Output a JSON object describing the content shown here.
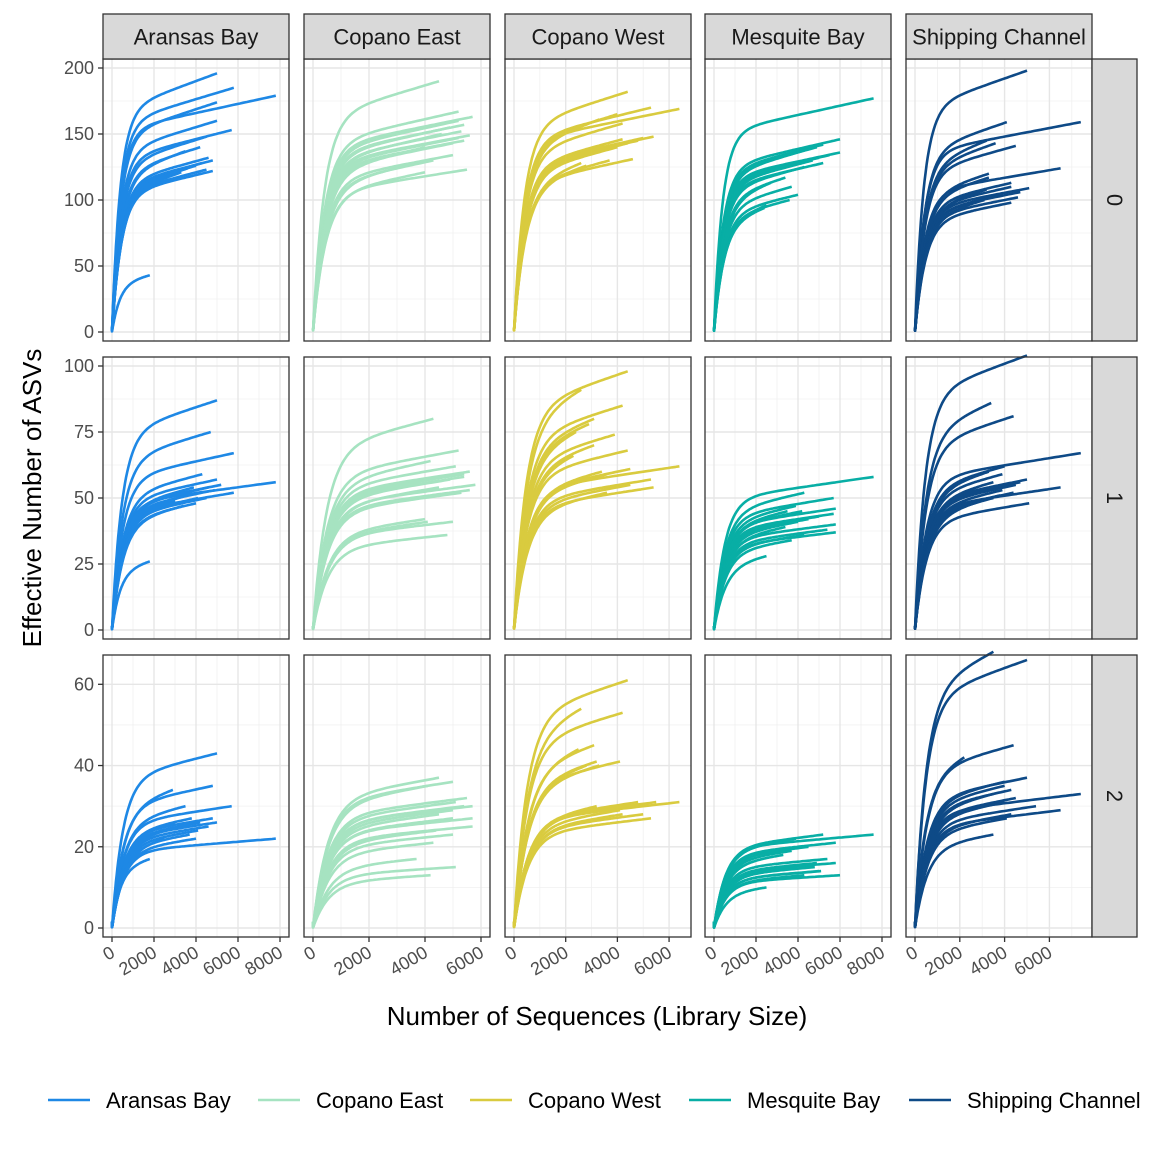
{
  "chart_data": {
    "type": "line",
    "xlabel": "Number of Sequences (Library Size)",
    "ylabel": "Effective Number of ASVs",
    "facet_columns": [
      "Aransas Bay",
      "Copano East",
      "Copano West",
      "Mesquite Bay",
      "Shipping Channel"
    ],
    "facet_rows": [
      "0",
      "1",
      "2"
    ],
    "x_axis": {
      "ranges": [
        [
          0,
          8000
        ],
        [
          0,
          6000
        ],
        [
          0,
          6500
        ],
        [
          0,
          8000
        ],
        [
          0,
          7500
        ]
      ],
      "ticks": [
        [
          "0",
          "2000",
          "4000",
          "6000",
          "8000"
        ],
        [
          "0",
          "2000",
          "4000",
          "6000"
        ],
        [
          "0",
          "2000",
          "4000",
          "6000"
        ],
        [
          "0",
          "2000",
          "4000",
          "6000",
          "8000"
        ],
        [
          "0",
          "2000",
          "4000",
          "6000"
        ]
      ]
    },
    "y_axis": {
      "ranges": [
        [
          0,
          200
        ],
        [
          0,
          100
        ],
        [
          0,
          65
        ]
      ],
      "ticks": [
        [
          "0",
          "50",
          "100",
          "150",
          "200"
        ],
        [
          "0",
          "25",
          "50",
          "75",
          "100"
        ],
        [
          "0",
          "20",
          "40",
          "60"
        ]
      ]
    },
    "colors": {
      "Aransas Bay": "#1e88e5",
      "Copano East": "#a6e3c1",
      "Copano West": "#d9cb3f",
      "Mesquite Bay": "#08aea5",
      "Shipping Channel": "#0e4a87"
    },
    "grid": true,
    "legend_position": "bottom",
    "legend": [
      "Aransas Bay",
      "Copano East",
      "Copano West",
      "Mesquite Bay",
      "Shipping Channel"
    ],
    "curves": [
      [
        [
          [
            5000,
            196
          ],
          [
            5800,
            185
          ],
          [
            7800,
            179
          ],
          [
            5000,
            174
          ],
          [
            5000,
            160
          ],
          [
            5700,
            153
          ],
          [
            4500,
            148
          ],
          [
            4200,
            140
          ],
          [
            3500,
            137
          ],
          [
            4600,
            132
          ],
          [
            4800,
            130
          ],
          [
            4300,
            128
          ],
          [
            4000,
            126
          ],
          [
            3600,
            124
          ],
          [
            4500,
            123
          ],
          [
            4800,
            122
          ],
          [
            3300,
            121
          ],
          [
            1800,
            43
          ]
        ],
        [
          [
            5000,
            87
          ],
          [
            4700,
            75
          ],
          [
            5800,
            67
          ],
          [
            4300,
            59
          ],
          [
            5000,
            57
          ],
          [
            7800,
            56
          ],
          [
            5200,
            55
          ],
          [
            4600,
            54
          ],
          [
            3900,
            54
          ],
          [
            4900,
            53
          ],
          [
            5800,
            52
          ],
          [
            3600,
            51
          ],
          [
            4100,
            50
          ],
          [
            4500,
            50
          ],
          [
            3000,
            49
          ],
          [
            4000,
            48
          ],
          [
            3400,
            47
          ],
          [
            1800,
            26
          ]
        ],
        [
          [
            5000,
            43
          ],
          [
            4800,
            35
          ],
          [
            2900,
            34
          ],
          [
            5700,
            30
          ],
          [
            3500,
            30
          ],
          [
            4800,
            27
          ],
          [
            3800,
            27
          ],
          [
            5000,
            26
          ],
          [
            4200,
            26
          ],
          [
            3000,
            26
          ],
          [
            4600,
            25
          ],
          [
            3300,
            25
          ],
          [
            4100,
            24
          ],
          [
            7800,
            22
          ],
          [
            3700,
            23
          ],
          [
            4000,
            22
          ],
          [
            2500,
            22
          ],
          [
            1800,
            17
          ]
        ]
      ],
      [
        [
          [
            4500,
            190
          ],
          [
            5200,
            167
          ],
          [
            5700,
            163
          ],
          [
            5200,
            160
          ],
          [
            5400,
            157
          ],
          [
            4900,
            155
          ],
          [
            5300,
            152
          ],
          [
            4600,
            150
          ],
          [
            5600,
            149
          ],
          [
            5200,
            147
          ],
          [
            5400,
            145
          ],
          [
            5000,
            143
          ],
          [
            4000,
            140
          ],
          [
            5000,
            134
          ],
          [
            4300,
            130
          ],
          [
            3700,
            128
          ],
          [
            5500,
            123
          ],
          [
            4000,
            121
          ]
        ],
        [
          [
            4300,
            80
          ],
          [
            5200,
            68
          ],
          [
            4200,
            64
          ],
          [
            5100,
            62
          ],
          [
            5600,
            60
          ],
          [
            5400,
            59
          ],
          [
            5400,
            58
          ],
          [
            4700,
            58
          ],
          [
            4900,
            57
          ],
          [
            5800,
            55
          ],
          [
            4500,
            54
          ],
          [
            5600,
            53
          ],
          [
            5300,
            52
          ],
          [
            4000,
            42
          ],
          [
            4100,
            41
          ],
          [
            5000,
            41
          ],
          [
            3500,
            40
          ],
          [
            4800,
            36
          ]
        ],
        [
          [
            4500,
            37
          ],
          [
            5000,
            36
          ],
          [
            4100,
            35
          ],
          [
            5500,
            32
          ],
          [
            5100,
            31
          ],
          [
            5400,
            30
          ],
          [
            5700,
            30
          ],
          [
            5000,
            29
          ],
          [
            4500,
            28
          ],
          [
            5700,
            27
          ],
          [
            5000,
            27
          ],
          [
            5700,
            25
          ],
          [
            4400,
            24
          ],
          [
            5000,
            23
          ],
          [
            4300,
            21
          ],
          [
            3700,
            17
          ],
          [
            5100,
            15
          ],
          [
            4200,
            13
          ]
        ]
      ],
      [
        [
          [
            4400,
            182
          ],
          [
            5300,
            170
          ],
          [
            6400,
            169
          ],
          [
            4000,
            165
          ],
          [
            3300,
            161
          ],
          [
            4200,
            158
          ],
          [
            5400,
            148
          ],
          [
            5000,
            147
          ],
          [
            4200,
            146
          ],
          [
            4800,
            145
          ],
          [
            4400,
            143
          ],
          [
            3500,
            141
          ],
          [
            4000,
            140
          ],
          [
            3100,
            138
          ],
          [
            4600,
            131
          ],
          [
            3700,
            130
          ],
          [
            2600,
            128
          ],
          [
            2800,
            126
          ]
        ],
        [
          [
            4400,
            98
          ],
          [
            2600,
            91
          ],
          [
            4200,
            85
          ],
          [
            3100,
            80
          ],
          [
            2900,
            78
          ],
          [
            2400,
            75
          ],
          [
            3900,
            74
          ],
          [
            3100,
            70
          ],
          [
            4400,
            68
          ],
          [
            2300,
            66
          ],
          [
            6400,
            62
          ],
          [
            4500,
            61
          ],
          [
            3400,
            60
          ],
          [
            3600,
            59
          ],
          [
            5300,
            57
          ],
          [
            4500,
            55
          ],
          [
            5400,
            54
          ],
          [
            3600,
            52
          ]
        ],
        [
          [
            4400,
            61
          ],
          [
            2600,
            54
          ],
          [
            4200,
            53
          ],
          [
            3100,
            45
          ],
          [
            2500,
            44
          ],
          [
            3200,
            41
          ],
          [
            4100,
            41
          ],
          [
            2800,
            40
          ],
          [
            3300,
            40
          ],
          [
            6400,
            31
          ],
          [
            4800,
            31
          ],
          [
            5500,
            31
          ],
          [
            3800,
            30
          ],
          [
            3200,
            30
          ],
          [
            4100,
            29
          ],
          [
            5000,
            28
          ],
          [
            4200,
            28
          ],
          [
            5300,
            27
          ]
        ]
      ],
      [
        [
          [
            7600,
            177
          ],
          [
            6000,
            146
          ],
          [
            5200,
            142
          ],
          [
            4900,
            140
          ],
          [
            4400,
            138
          ],
          [
            6000,
            136
          ],
          [
            5500,
            134
          ],
          [
            5000,
            132
          ],
          [
            4700,
            130
          ],
          [
            5200,
            128
          ],
          [
            4300,
            125
          ],
          [
            3400,
            117
          ],
          [
            2700,
            113
          ],
          [
            3700,
            110
          ],
          [
            4000,
            104
          ],
          [
            3600,
            100
          ],
          [
            2500,
            96
          ],
          [
            2400,
            94
          ]
        ],
        [
          [
            7600,
            58
          ],
          [
            4300,
            52
          ],
          [
            5700,
            50
          ],
          [
            3900,
            47
          ],
          [
            5800,
            46
          ],
          [
            3500,
            45
          ],
          [
            4200,
            45
          ],
          [
            5700,
            44
          ],
          [
            5000,
            43
          ],
          [
            4500,
            42
          ],
          [
            4000,
            41
          ],
          [
            5800,
            40
          ],
          [
            3400,
            39
          ],
          [
            5400,
            38
          ],
          [
            5800,
            37
          ],
          [
            4300,
            36
          ],
          [
            3700,
            34
          ],
          [
            2500,
            28
          ]
        ],
        [
          [
            7600,
            23
          ],
          [
            5200,
            23
          ],
          [
            3900,
            22
          ],
          [
            5800,
            21
          ],
          [
            4500,
            20
          ],
          [
            3700,
            19
          ],
          [
            3300,
            18
          ],
          [
            5400,
            17
          ],
          [
            4900,
            16
          ],
          [
            5800,
            16
          ],
          [
            4700,
            15
          ],
          [
            3900,
            15
          ],
          [
            4800,
            15
          ],
          [
            5000,
            14
          ],
          [
            5100,
            14
          ],
          [
            6000,
            13
          ],
          [
            4300,
            13
          ],
          [
            2500,
            10
          ]
        ]
      ],
      [
        [
          [
            5000,
            198
          ],
          [
            7400,
            159
          ],
          [
            4100,
            159
          ],
          [
            3200,
            145
          ],
          [
            3600,
            143
          ],
          [
            4500,
            141
          ],
          [
            6500,
            124
          ],
          [
            3300,
            120
          ],
          [
            3300,
            117
          ],
          [
            4300,
            113
          ],
          [
            4300,
            110
          ],
          [
            5100,
            109
          ],
          [
            3200,
            108
          ],
          [
            4700,
            106
          ],
          [
            3800,
            104
          ],
          [
            4600,
            102
          ],
          [
            3100,
            100
          ],
          [
            4300,
            98
          ]
        ],
        [
          [
            5000,
            104
          ],
          [
            3400,
            86
          ],
          [
            4400,
            81
          ],
          [
            7400,
            67
          ],
          [
            4000,
            62
          ],
          [
            3300,
            60
          ],
          [
            3900,
            59
          ],
          [
            5000,
            57
          ],
          [
            4700,
            56
          ],
          [
            3500,
            56
          ],
          [
            4500,
            55
          ],
          [
            6500,
            54
          ],
          [
            3900,
            53
          ],
          [
            4400,
            52
          ],
          [
            3800,
            51
          ],
          [
            3500,
            50
          ],
          [
            3000,
            49
          ],
          [
            5100,
            48
          ]
        ],
        [
          [
            3500,
            68
          ],
          [
            5000,
            66
          ],
          [
            4400,
            45
          ],
          [
            2200,
            42
          ],
          [
            5000,
            37
          ],
          [
            4000,
            36
          ],
          [
            4000,
            35
          ],
          [
            4300,
            34
          ],
          [
            7400,
            33
          ],
          [
            3500,
            33
          ],
          [
            4500,
            32
          ],
          [
            4000,
            31
          ],
          [
            3700,
            31
          ],
          [
            5400,
            30
          ],
          [
            6500,
            29
          ],
          [
            4300,
            28
          ],
          [
            4100,
            27
          ],
          [
            3500,
            23
          ]
        ]
      ]
    ]
  }
}
